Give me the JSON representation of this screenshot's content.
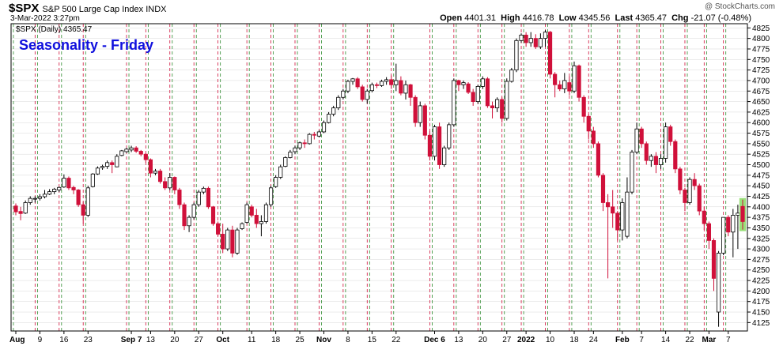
{
  "header": {
    "symbol": "$SPX",
    "description": "S&P 500 Large Cap Index  INDX",
    "timestamp": "3-Mar-2022 3:27pm",
    "watermark": "@ StockCharts.com",
    "open_label": "Open",
    "open": "4401.31",
    "high_label": "High",
    "high": "4416.78",
    "low_label": "Low",
    "low": "4345.56",
    "last_label": "Last",
    "last": "4365.47",
    "chg_label": "Chg",
    "chg": "-21.07 (-0.48%)"
  },
  "chart_data": {
    "type": "candlestick",
    "title": "Seasonality - Friday",
    "legend": "$SPX (Daily) 4365.47",
    "legend_placement": "top-left",
    "ylim": [
      4105,
      4835
    ],
    "y_ticks": [
      4125,
      4150,
      4175,
      4200,
      4225,
      4250,
      4275,
      4300,
      4325,
      4350,
      4375,
      4400,
      4425,
      4450,
      4475,
      4500,
      4525,
      4550,
      4575,
      4600,
      4625,
      4650,
      4675,
      4700,
      4725,
      4750,
      4775,
      4800,
      4825
    ],
    "x_ticks": [
      {
        "label": "Aug",
        "index": 0,
        "bold": true
      },
      {
        "label": "9",
        "index": 5
      },
      {
        "label": "16",
        "index": 10
      },
      {
        "label": "23",
        "index": 15
      },
      {
        "label": "Sep 7",
        "index": 24,
        "bold": true
      },
      {
        "label": "13",
        "index": 28
      },
      {
        "label": "20",
        "index": 33
      },
      {
        "label": "27",
        "index": 38
      },
      {
        "label": "Oct",
        "index": 43,
        "bold": true
      },
      {
        "label": "11",
        "index": 49
      },
      {
        "label": "18",
        "index": 54
      },
      {
        "label": "25",
        "index": 59
      },
      {
        "label": "Nov",
        "index": 64,
        "bold": true
      },
      {
        "label": "8",
        "index": 69
      },
      {
        "label": "15",
        "index": 74
      },
      {
        "label": "22",
        "index": 79
      },
      {
        "label": "Dec 6",
        "index": 87,
        "bold": true
      },
      {
        "label": "13",
        "index": 92
      },
      {
        "label": "20",
        "index": 97
      },
      {
        "label": "27",
        "index": 102
      },
      {
        "label": "2022",
        "index": 106,
        "bold": true
      },
      {
        "label": "10",
        "index": 111
      },
      {
        "label": "18",
        "index": 116
      },
      {
        "label": "24",
        "index": 120
      },
      {
        "label": "Feb",
        "index": 126,
        "bold": true
      },
      {
        "label": "7",
        "index": 130
      },
      {
        "label": "14",
        "index": 135
      },
      {
        "label": "22",
        "index": 140
      },
      {
        "label": "Mar",
        "index": 144,
        "bold": true
      },
      {
        "label": "7",
        "index": 148
      }
    ],
    "highlighted_weekday": "Friday",
    "colors": {
      "up": "#ffffff",
      "down": "#d0103a",
      "up_outline": "#000000",
      "friday_line": "#d0103a",
      "week_line": "#2e8b2e",
      "title": "#1010dd",
      "grid": "#d8d8d8",
      "last_bar_glow": "#99e07a"
    },
    "candles": [
      [
        4402,
        4408,
        4380,
        4388
      ],
      [
        4389,
        4400,
        4368,
        4384
      ],
      [
        4385,
        4415,
        4383,
        4410
      ],
      [
        4410,
        4425,
        4405,
        4420
      ],
      [
        4420,
        4425,
        4410,
        4420
      ],
      [
        4420,
        4430,
        4415,
        4424
      ],
      [
        4424,
        4440,
        4420,
        4430
      ],
      [
        4430,
        4442,
        4428,
        4436
      ],
      [
        4436,
        4445,
        4430,
        4442
      ],
      [
        4440,
        4448,
        4435,
        4446
      ],
      [
        4447,
        4477,
        4445,
        4468
      ],
      [
        4468,
        4472,
        4440,
        4445
      ],
      [
        4446,
        4450,
        4430,
        4440
      ],
      [
        4440,
        4442,
        4400,
        4405
      ],
      [
        4405,
        4412,
        4360,
        4380
      ],
      [
        4380,
        4450,
        4376,
        4445
      ],
      [
        4448,
        4480,
        4446,
        4478
      ],
      [
        4478,
        4496,
        4476,
        4492
      ],
      [
        4493,
        4500,
        4488,
        4496
      ],
      [
        4496,
        4510,
        4490,
        4505
      ],
      [
        4505,
        4510,
        4480,
        4500
      ],
      [
        4495,
        4525,
        4494,
        4520
      ],
      [
        4522,
        4535,
        4520,
        4533
      ],
      [
        4531,
        4540,
        4528,
        4537
      ],
      [
        4535,
        4545,
        4530,
        4540
      ],
      [
        4540,
        4544,
        4528,
        4532
      ],
      [
        4532,
        4535,
        4520,
        4525
      ],
      [
        4525,
        4528,
        4505,
        4512
      ],
      [
        4512,
        4515,
        4470,
        4480
      ],
      [
        4480,
        4490,
        4475,
        4485
      ],
      [
        4485,
        4490,
        4455,
        4460
      ],
      [
        4460,
        4470,
        4440,
        4445
      ],
      [
        4445,
        4480,
        4440,
        4470
      ],
      [
        4470,
        4472,
        4430,
        4440
      ],
      [
        4440,
        4445,
        4395,
        4405
      ],
      [
        4405,
        4410,
        4345,
        4355
      ],
      [
        4355,
        4380,
        4340,
        4375
      ],
      [
        4375,
        4410,
        4370,
        4405
      ],
      [
        4405,
        4440,
        4400,
        4435
      ],
      [
        4435,
        4448,
        4430,
        4444
      ],
      [
        4444,
        4448,
        4395,
        4400
      ],
      [
        4400,
        4402,
        4355,
        4360
      ],
      [
        4360,
        4365,
        4330,
        4335
      ],
      [
        4335,
        4360,
        4290,
        4300
      ],
      [
        4300,
        4350,
        4295,
        4345
      ],
      [
        4345,
        4355,
        4280,
        4290
      ],
      [
        4290,
        4350,
        4286,
        4345
      ],
      [
        4348,
        4363,
        4345,
        4360
      ],
      [
        4363,
        4410,
        4360,
        4405
      ],
      [
        4400,
        4405,
        4375,
        4380
      ],
      [
        4380,
        4395,
        4350,
        4360
      ],
      [
        4360,
        4380,
        4330,
        4365
      ],
      [
        4365,
        4410,
        4360,
        4405
      ],
      [
        4405,
        4450,
        4400,
        4445
      ],
      [
        4448,
        4475,
        4445,
        4470
      ],
      [
        4470,
        4500,
        4466,
        4495
      ],
      [
        4496,
        4520,
        4494,
        4517
      ],
      [
        4517,
        4535,
        4515,
        4530
      ],
      [
        4531,
        4545,
        4525,
        4540
      ],
      [
        4540,
        4555,
        4535,
        4552
      ],
      [
        4552,
        4560,
        4540,
        4550
      ],
      [
        4550,
        4575,
        4548,
        4572
      ],
      [
        4572,
        4578,
        4560,
        4570
      ],
      [
        4568,
        4582,
        4565,
        4578
      ],
      [
        4578,
        4605,
        4575,
        4600
      ],
      [
        4600,
        4625,
        4598,
        4620
      ],
      [
        4620,
        4640,
        4615,
        4635
      ],
      [
        4635,
        4665,
        4630,
        4660
      ],
      [
        4660,
        4680,
        4655,
        4675
      ],
      [
        4675,
        4702,
        4670,
        4698
      ],
      [
        4698,
        4706,
        4690,
        4704
      ],
      [
        4704,
        4708,
        4680,
        4685
      ],
      [
        4685,
        4690,
        4650,
        4655
      ],
      [
        4655,
        4680,
        4645,
        4675
      ],
      [
        4676,
        4695,
        4672,
        4690
      ],
      [
        4690,
        4695,
        4682,
        4688
      ],
      [
        4688,
        4702,
        4685,
        4698
      ],
      [
        4698,
        4708,
        4690,
        4702
      ],
      [
        4702,
        4712,
        4680,
        4690
      ],
      [
        4690,
        4740,
        4675,
        4700
      ],
      [
        4700,
        4710,
        4665,
        4670
      ],
      [
        4670,
        4700,
        4655,
        4690
      ],
      [
        4690,
        4692,
        4640,
        4660
      ],
      [
        4660,
        4665,
        4590,
        4600
      ],
      [
        4600,
        4650,
        4590,
        4640
      ],
      [
        4640,
        4645,
        4560,
        4570
      ],
      [
        4570,
        4580,
        4510,
        4520
      ],
      [
        4520,
        4595,
        4510,
        4590
      ],
      [
        4590,
        4600,
        4490,
        4500
      ],
      [
        4500,
        4545,
        4495,
        4540
      ],
      [
        4540,
        4600,
        4535,
        4595
      ],
      [
        4595,
        4705,
        4590,
        4700
      ],
      [
        4700,
        4702,
        4675,
        4690
      ],
      [
        4690,
        4700,
        4680,
        4695
      ],
      [
        4692,
        4696,
        4668,
        4672
      ],
      [
        4672,
        4680,
        4640,
        4650
      ],
      [
        4650,
        4690,
        4645,
        4686
      ],
      [
        4686,
        4710,
        4680,
        4704
      ],
      [
        4704,
        4708,
        4635,
        4640
      ],
      [
        4640,
        4650,
        4610,
        4635
      ],
      [
        4635,
        4660,
        4625,
        4655
      ],
      [
        4655,
        4660,
        4600,
        4610
      ],
      [
        4610,
        4705,
        4605,
        4698
      ],
      [
        4698,
        4730,
        4695,
        4725
      ],
      [
        4725,
        4800,
        4720,
        4795
      ],
      [
        4795,
        4812,
        4790,
        4808
      ],
      [
        4808,
        4815,
        4780,
        4790
      ],
      [
        4790,
        4815,
        4780,
        4800
      ],
      [
        4800,
        4810,
        4775,
        4780
      ],
      [
        4780,
        4812,
        4775,
        4800
      ],
      [
        4800,
        4820,
        4780,
        4815
      ],
      [
        4815,
        4818,
        4705,
        4715
      ],
      [
        4715,
        4720,
        4660,
        4690
      ],
      [
        4690,
        4700,
        4675,
        4680
      ],
      [
        4680,
        4718,
        4670,
        4700
      ],
      [
        4695,
        4710,
        4665,
        4675
      ],
      [
        4675,
        4745,
        4670,
        4735
      ],
      [
        4735,
        4738,
        4650,
        4660
      ],
      [
        4660,
        4665,
        4600,
        4615
      ],
      [
        4615,
        4620,
        4560,
        4580
      ],
      [
        4580,
        4590,
        4540,
        4550
      ],
      [
        4550,
        4555,
        4470,
        4475
      ],
      [
        4475,
        4480,
        4390,
        4410
      ],
      [
        4410,
        4430,
        4230,
        4400
      ],
      [
        4400,
        4440,
        4350,
        4385
      ],
      [
        4385,
        4390,
        4320,
        4345
      ],
      [
        4345,
        4420,
        4320,
        4410
      ],
      [
        4330,
        4470,
        4325,
        4435
      ],
      [
        4435,
        4535,
        4430,
        4530
      ],
      [
        4530,
        4600,
        4525,
        4585
      ],
      [
        4585,
        4590,
        4540,
        4550
      ],
      [
        4550,
        4555,
        4500,
        4510
      ],
      [
        4510,
        4525,
        4495,
        4520
      ],
      [
        4520,
        4530,
        4480,
        4500
      ],
      [
        4500,
        4525,
        4490,
        4515
      ],
      [
        4515,
        4600,
        4505,
        4590
      ],
      [
        4590,
        4595,
        4545,
        4555
      ],
      [
        4555,
        4560,
        4480,
        4490
      ],
      [
        4490,
        4495,
        4430,
        4440
      ],
      [
        4440,
        4445,
        4390,
        4410
      ],
      [
        4410,
        4470,
        4405,
        4465
      ],
      [
        4465,
        4480,
        4440,
        4450
      ],
      [
        4450,
        4455,
        4380,
        4390
      ],
      [
        4390,
        4400,
        4345,
        4360
      ],
      [
        4360,
        4365,
        4300,
        4320
      ],
      [
        4320,
        4325,
        4200,
        4230
      ],
      [
        4150,
        4295,
        4115,
        4290
      ],
      [
        4290,
        4375,
        4285,
        4375
      ],
      [
        4375,
        4380,
        4330,
        4340
      ],
      [
        4340,
        4395,
        4280,
        4380
      ],
      [
        4380,
        4405,
        4300,
        4385
      ],
      [
        4401,
        4417,
        4346,
        4365
      ]
    ]
  }
}
